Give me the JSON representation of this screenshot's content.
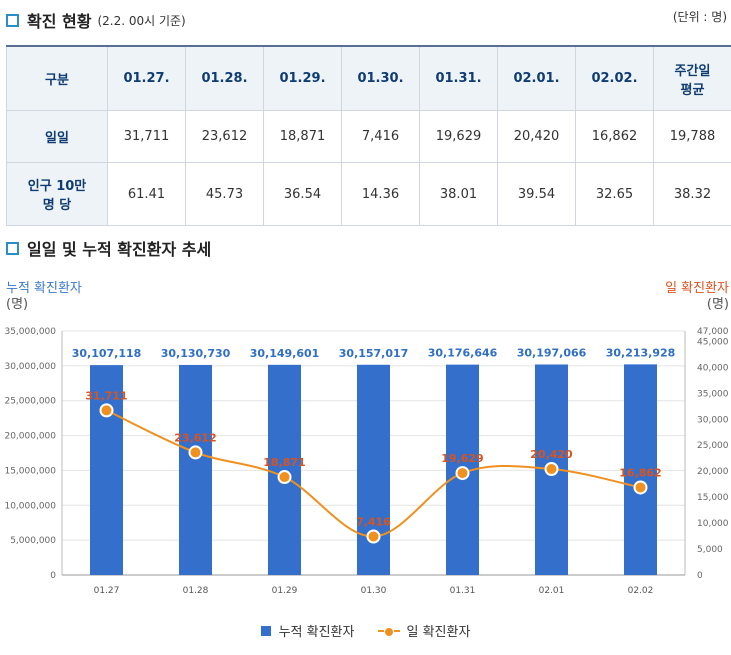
{
  "section1": {
    "title": "확진 현황",
    "subtitle": "(2.2. 00시 기준)",
    "unit": "(단위 : 명)"
  },
  "table": {
    "header": [
      "구분",
      "01.27.",
      "01.28.",
      "01.29.",
      "01.30.",
      "01.31.",
      "02.01.",
      "02.02.",
      "주간일\n평균"
    ],
    "rows": [
      [
        "일일",
        "31,711",
        "23,612",
        "18,871",
        "7,416",
        "19,629",
        "20,420",
        "16,862",
        "19,788"
      ],
      [
        "인구 10만\n명 당",
        "61.41",
        "45.73",
        "36.54",
        "14.36",
        "38.01",
        "39.54",
        "32.65",
        "38.32"
      ]
    ]
  },
  "section2": {
    "title": "일일 및 누적 확진환자 추세"
  },
  "left_axis_caption": {
    "title": "누적 확진환자",
    "unit": "(명)"
  },
  "right_axis_caption": {
    "title": "일 확진환자",
    "unit": "(명)"
  },
  "chart_data": {
    "type": "bar+line",
    "categories": [
      "01.27",
      "01.28",
      "01.29",
      "01.30",
      "01.31",
      "02.01",
      "02.02"
    ],
    "series": [
      {
        "name": "누적 확진환자",
        "type": "bar",
        "axis": "left",
        "values": [
          30107118,
          30130730,
          30149601,
          30157017,
          30176646,
          30197066,
          30213928
        ],
        "labels": [
          "30,107,118",
          "30,130,730",
          "30,149,601",
          "30,157,017",
          "30,176,646",
          "30,197,066",
          "30,213,928"
        ],
        "color": "#3470cb"
      },
      {
        "name": "일 확진환자",
        "type": "line",
        "axis": "right",
        "values": [
          31711,
          23612,
          18871,
          7416,
          19629,
          20420,
          16862
        ],
        "labels": [
          "31,711",
          "23,612",
          "18,871",
          "7,416",
          "19,629",
          "20,420",
          "16,862"
        ],
        "color": "#f0901e"
      }
    ],
    "left_axis": {
      "min": 0,
      "max": 35000000,
      "ticks": [
        0,
        5000000,
        10000000,
        15000000,
        20000000,
        25000000,
        30000000,
        35000000
      ],
      "tick_labels": [
        "0",
        "5,000,000",
        "10,000,000",
        "15,000,000",
        "20,000,000",
        "25,000,000",
        "30,000,000",
        "35,000,000"
      ]
    },
    "right_axis": {
      "min": 0,
      "max": 47000,
      "ticks": [
        0,
        5000,
        10000,
        15000,
        20000,
        25000,
        30000,
        35000,
        40000,
        45000,
        47000
      ],
      "tick_labels": [
        "0",
        "5,000",
        "10,000",
        "15,000",
        "20,000",
        "25,000",
        "30,000",
        "35,000",
        "40,000",
        "45,000",
        "47,000"
      ]
    },
    "legend": [
      "누적 확진환자",
      "일 확진환자"
    ],
    "legend_position": "bottom",
    "grid": true
  }
}
